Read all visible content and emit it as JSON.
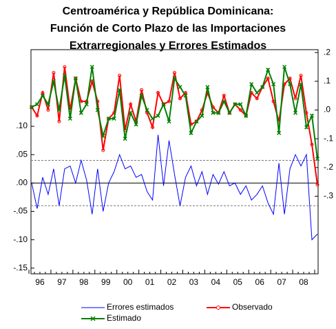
{
  "chart_data": {
    "type": "line",
    "title": [
      "Centroamérica y República Dominicana:",
      "Función de Corto Plazo de las Importaciones",
      "Extrarregionales y Errores Estimados"
    ],
    "categories": [
      "96",
      null,
      null,
      null,
      "97",
      null,
      null,
      null,
      "98",
      null,
      null,
      null,
      "99",
      null,
      null,
      null,
      "00",
      null,
      null,
      null,
      "01",
      null,
      null,
      null,
      "02",
      null,
      null,
      null,
      "03",
      null,
      null,
      null,
      "04",
      null,
      null,
      null,
      "05",
      null,
      null,
      null,
      "06",
      null,
      null,
      null,
      "07",
      null,
      null,
      null,
      "08",
      null,
      null,
      null,
      null
    ],
    "ylim": [
      -0.16,
      0.235
    ],
    "yticks": [
      {
        "value": 0.1,
        "label": ".10"
      },
      {
        "value": 0.05,
        "label": ".05"
      },
      {
        "value": 0,
        "label": ".00"
      },
      {
        "value": -0.05,
        "label": "-.05"
      },
      {
        "value": -0.1,
        "label": "-.10"
      },
      {
        "value": -0.15,
        "label": "-.15"
      }
    ],
    "y2lim": [
      -0.57,
      0.21
    ],
    "y2ticks": [
      {
        "value": 0.2,
        "label": ".2"
      },
      {
        "value": 0.1,
        "label": ".1"
      },
      {
        "value": 0,
        "label": ".0"
      },
      {
        "value": -0.1,
        "label": "-.1"
      },
      {
        "value": -0.2,
        "label": "-.2"
      },
      {
        "value": -0.3,
        "label": "-.3"
      }
    ],
    "dashed_lines": [
      0.04,
      -0.04
    ],
    "series": [
      {
        "name": "Errores estimados",
        "color": "#0000ff",
        "marker": "none",
        "values": [
          0,
          -0.045,
          0.01,
          -0.02,
          0.025,
          -0.04,
          0.025,
          0.03,
          0,
          0.04,
          0.005,
          -0.055,
          0.025,
          -0.05,
          0,
          0.02,
          0.05,
          0.025,
          0.03,
          0.01,
          0.015,
          -0.015,
          -0.03,
          0.085,
          -0.005,
          0.075,
          0.015,
          -0.04,
          0.01,
          0.03,
          -0.005,
          0.02,
          -0.02,
          0.015,
          -0.002,
          0.02,
          -0.005,
          0,
          -0.02,
          -0.005,
          -0.03,
          -0.02,
          -0.005,
          -0.035,
          -0.055,
          0.035,
          -0.055,
          0.025,
          0.05,
          0.03,
          0.05,
          -0.1,
          -0.09
        ]
      },
      {
        "name": "Observado",
        "color": "#ff0000",
        "marker": "circle",
        "axis": "y2",
        "values": [
          0.01,
          -0.02,
          0.06,
          0,
          0.13,
          -0.04,
          0.15,
          0,
          0.11,
          0.03,
          0.03,
          0.1,
          0.03,
          -0.14,
          -0.03,
          -0.01,
          0.12,
          -0.07,
          0.02,
          -0.04,
          0.07,
          -0.01,
          -0.06,
          0.06,
          0.02,
          0.03,
          0.13,
          0.04,
          0.06,
          -0.05,
          -0.04,
          0,
          0.06,
          0.01,
          -0.01,
          0.05,
          -0.01,
          0.02,
          0,
          -0.02,
          0.06,
          0.04,
          0.08,
          0.11,
          0.03,
          -0.04,
          0.09,
          0.11,
          0.04,
          0.12,
          -0.01,
          -0.12,
          -0.26
        ]
      },
      {
        "name": "Estimado",
        "color": "#008000",
        "marker": "x",
        "axis": "y2",
        "values": [
          0.01,
          0.02,
          0.05,
          0.02,
          0.1,
          0,
          0.12,
          -0.03,
          0.11,
          -0.01,
          0.02,
          0.15,
          0,
          -0.09,
          -0.03,
          -0.03,
          0.07,
          -0.1,
          -0.01,
          -0.05,
          0.05,
          0,
          -0.03,
          -0.02,
          0.02,
          -0.04,
          0.11,
          0.08,
          0.05,
          -0.08,
          -0.04,
          -0.02,
          0.08,
          -0.01,
          -0.01,
          0.03,
          -0.01,
          0.02,
          0.02,
          -0.02,
          0.09,
          0.06,
          0.08,
          0.14,
          0.09,
          -0.08,
          0.15,
          0.09,
          -0.01,
          0.09,
          -0.06,
          -0.02,
          -0.17
        ]
      }
    ]
  }
}
